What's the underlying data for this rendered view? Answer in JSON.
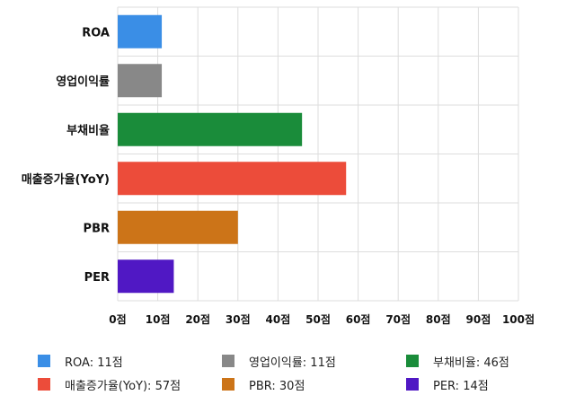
{
  "chart_data": {
    "type": "bar",
    "orientation": "horizontal",
    "categories": [
      "ROA",
      "영업이익률",
      "부채비율",
      "매출증가율(YoY)",
      "PBR",
      "PER"
    ],
    "values": [
      11,
      11,
      46,
      57,
      30,
      14
    ],
    "colors": [
      "#3a8ee6",
      "#888888",
      "#1a8c3a",
      "#ec4c3a",
      "#cc7418",
      "#5018c4"
    ],
    "xlim": [
      0,
      100
    ],
    "x_ticks": [
      0,
      10,
      20,
      30,
      40,
      50,
      60,
      70,
      80,
      90,
      100
    ],
    "tick_labels": [
      "0점",
      "10점",
      "20점",
      "30점",
      "40점",
      "50점",
      "60점",
      "70점",
      "80점",
      "90점",
      "100점"
    ],
    "grid": true,
    "legend_position": "bottom",
    "legend": [
      {
        "label": "ROA: 11점",
        "color": "#3a8ee6"
      },
      {
        "label": "영업이익률: 11점",
        "color": "#888888"
      },
      {
        "label": "부채비율: 46점",
        "color": "#1a8c3a"
      },
      {
        "label": "매출증가율(YoY): 57점",
        "color": "#ec4c3a"
      },
      {
        "label": "PBR: 30점",
        "color": "#cc7418"
      },
      {
        "label": "PER: 14점",
        "color": "#5018c4"
      }
    ]
  }
}
